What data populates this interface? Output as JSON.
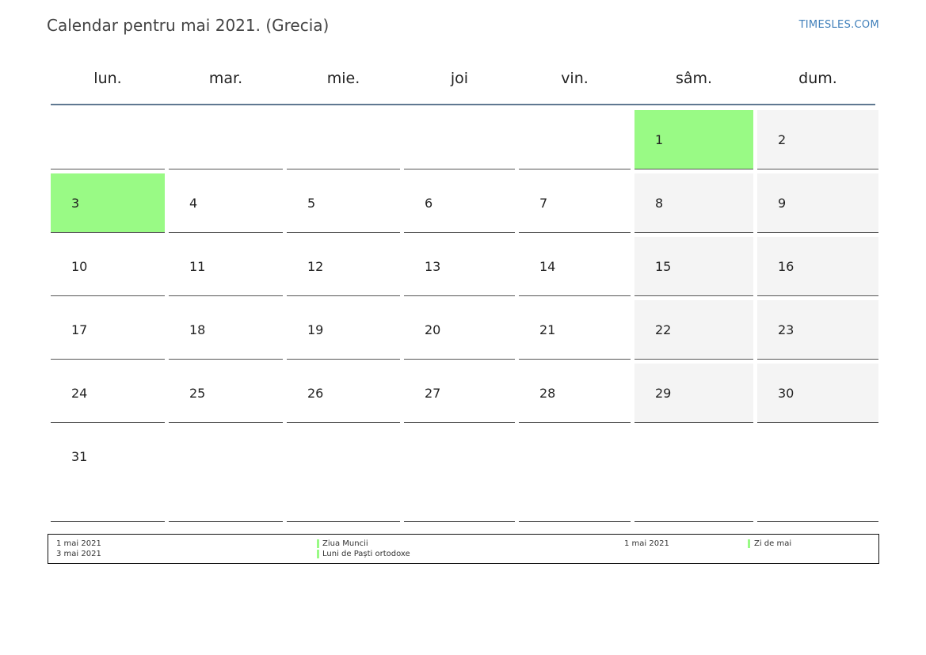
{
  "title": "Calendar pentru mai 2021. (Grecia)",
  "brand": "TIMESLES.COM",
  "colors": {
    "holiday": "#99fa85",
    "weekend": "#f4f4f4",
    "header_line": "#5f7891",
    "brand": "#3f7fba"
  },
  "weekdays": [
    "lun.",
    "mar.",
    "mie.",
    "joi",
    "vin.",
    "sâm.",
    "dum."
  ],
  "weeks": [
    [
      "",
      "",
      "",
      "",
      "",
      "1",
      "2"
    ],
    [
      "3",
      "4",
      "5",
      "6",
      "7",
      "8",
      "9"
    ],
    [
      "10",
      "11",
      "12",
      "13",
      "14",
      "15",
      "16"
    ],
    [
      "17",
      "18",
      "19",
      "20",
      "21",
      "22",
      "23"
    ],
    [
      "24",
      "25",
      "26",
      "27",
      "28",
      "29",
      "30"
    ],
    [
      "31",
      "",
      "",
      "",
      "",
      "",
      ""
    ]
  ],
  "holiday_days": [
    "1",
    "3"
  ],
  "legend": {
    "left": [
      {
        "date": "1 mai 2021",
        "name": "Ziua Muncii"
      },
      {
        "date": "3 mai 2021",
        "name": "Luni de Paști ortodoxe"
      }
    ],
    "right": [
      {
        "date": "1 mai 2021",
        "name": "Zi de mai"
      }
    ]
  }
}
